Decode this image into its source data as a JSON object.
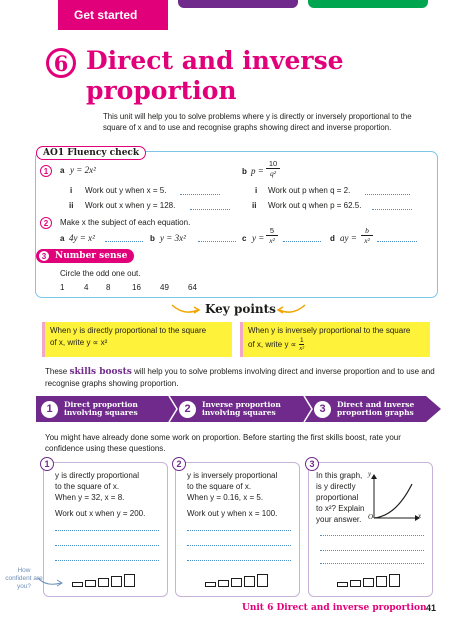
{
  "header": {
    "section_tab": "Get started"
  },
  "title": {
    "unit_number": "6",
    "line1": "Direct and inverse",
    "line2": "proportion",
    "intro": "This unit will help you to solve problems where y is directly or inversely proportional to the square of x and to use and recognise graphs showing direct and inverse proportion."
  },
  "fluency": {
    "label": "AO1 Fluency check",
    "q1": {
      "num": "1",
      "a_label": "a",
      "a_eq": "y = 2x²",
      "a_i_label": "i",
      "a_i_text": "Work out y when x = 5.",
      "a_ii_label": "ii",
      "a_ii_text": "Work out x when y = 128.",
      "b_label": "b",
      "b_eq_lhs": "p =",
      "b_num": "10",
      "b_den": "q²",
      "b_i_label": "i",
      "b_i_text": "Work out p when q = 2.",
      "b_ii_label": "ii",
      "b_ii_text": "Work out q when p = 62.5."
    },
    "q2": {
      "num": "2",
      "text": "Make x the subject of each equation.",
      "a_label": "a",
      "a_eq": "4y = x²",
      "b_label": "b",
      "b_eq": "y = 3x²",
      "c_label": "c",
      "c_lhs": "y =",
      "c_num": "5",
      "c_den": "x²",
      "d_label": "d",
      "d_lhs": "ay =",
      "d_num": "b",
      "d_den": "x²"
    },
    "q3": {
      "num": "3",
      "label": "Number sense",
      "text": "Circle the odd one out.",
      "numbers": [
        "1",
        "4",
        "8",
        "16",
        "49",
        "64"
      ]
    }
  },
  "key_points": {
    "title": "Key points",
    "point1_line1": "When y is directly proportional to the square",
    "point1_line2": "of x, write y ∝ x²",
    "point2_line1": "When y is inversely proportional to the square",
    "point2_line2_pre": "of x, write y ∝",
    "point2_num": "1",
    "point2_den": "x²"
  },
  "skills": {
    "pre": "These",
    "highlight": "skills boosts",
    "post": "will help you to solve problems involving direct and inverse proportion and to use and recognise graphs showing proportion.",
    "boosts": [
      {
        "num": "1",
        "line1": "Direct proportion",
        "line2": "involving squares"
      },
      {
        "num": "2",
        "line1": "Inverse proportion",
        "line2": "involving squares"
      },
      {
        "num": "3",
        "line1": "Direct and inverse",
        "line2": "proportion graphs"
      }
    ]
  },
  "confidence_intro": "You might have already done some work on proportion. Before starting the first skills boost, rate your confidence using these questions.",
  "cards": [
    {
      "num": "1",
      "lines": [
        "y is directly proportional",
        "to the square of x.",
        "When y = 32, x = 8.",
        "Work out x when y = 200."
      ]
    },
    {
      "num": "2",
      "lines": [
        "y is inversely proportional",
        "to the square of x.",
        "When y = 0.16, x = 5.",
        "Work out y when x = 100."
      ]
    },
    {
      "num": "3",
      "lines": [
        "In this graph,",
        "is y directly",
        "proportional",
        "to x²? Explain",
        "your answer."
      ],
      "graph_y": "y",
      "graph_x": "x",
      "graph_o": "O"
    }
  ],
  "how_confident": "How confident are you?",
  "footer": {
    "unit": "Unit 6 Direct and inverse proportion",
    "page": "41"
  },
  "colors": {
    "pink": "#e2007a",
    "purple": "#6f2a8b",
    "green": "#00a54f",
    "yellow": "#fff23a",
    "blue": "#7cc6e6"
  }
}
